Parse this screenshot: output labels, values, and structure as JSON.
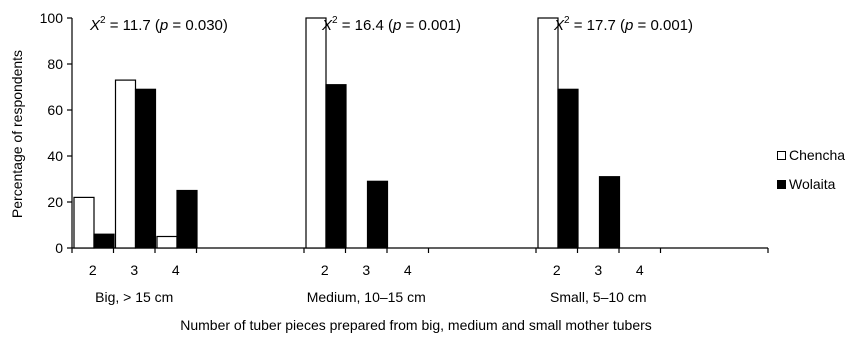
{
  "chart_data": {
    "type": "bar",
    "groups": [
      {
        "label": "Big, > 15 cm",
        "annotation": {
          "prefix": "X",
          "sup": "2",
          "rest": " = 11.7 (",
          "p": "p",
          "tail": " = 0.030)"
        }
      },
      {
        "label": "Medium, 10–15 cm",
        "annotation": {
          "prefix": "X",
          "sup": "2",
          "rest": " = 16.4 (",
          "p": "p",
          "tail": " = 0.001)"
        }
      },
      {
        "label": "Small, 5–10 cm",
        "annotation": {
          "prefix": "X",
          "sup": "2",
          "rest": " = 17.7 (",
          "p": "p",
          "tail": " = 0.001)"
        }
      }
    ],
    "categories": [
      "2",
      "3",
      "4"
    ],
    "series": [
      {
        "name": "Chencha",
        "color": "#ffffff",
        "values": [
          [
            22,
            73,
            5
          ],
          [
            100,
            0,
            0
          ],
          [
            100,
            0,
            0
          ]
        ]
      },
      {
        "name": "Wolaita",
        "color": "#000000",
        "values": [
          [
            6,
            69,
            25
          ],
          [
            71,
            29,
            0
          ],
          [
            69,
            31,
            0
          ]
        ]
      }
    ],
    "ylabel": "Percentage of respondents",
    "xlabel": "Number of tuber pieces prepared from big, medium and small mother tubers",
    "yticks": [
      0,
      20,
      40,
      60,
      80,
      100
    ],
    "ylim": [
      0,
      100
    ],
    "grid": false,
    "legend_position": "right"
  }
}
